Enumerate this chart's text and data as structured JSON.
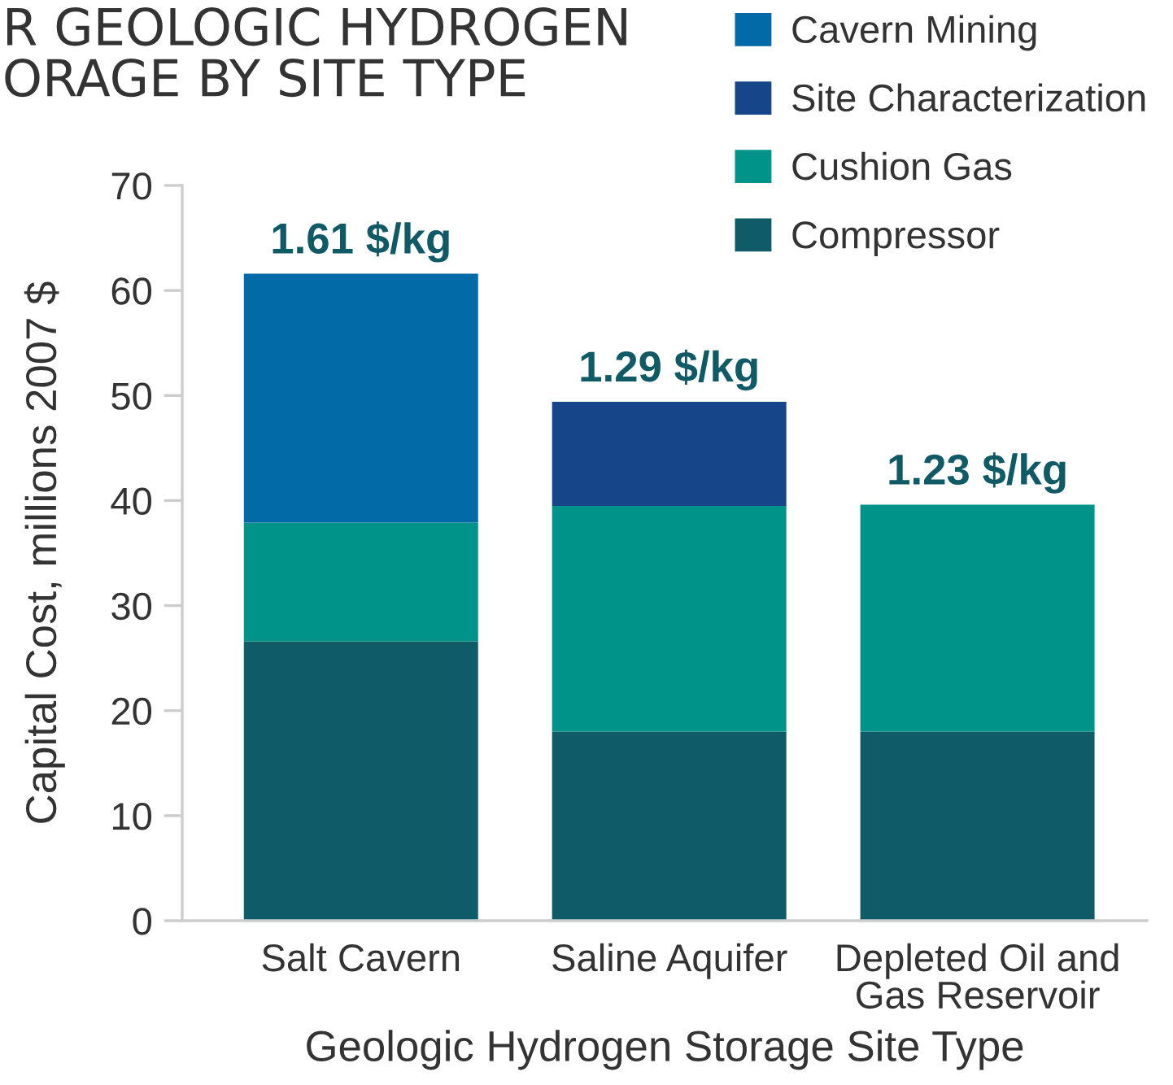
{
  "chart_data": {
    "type": "bar",
    "title": "R GEOLOGIC HYDROGEN\nORAGE BY SITE TYPE",
    "xlabel": "Geologic Hydrogen Storage Site Type",
    "ylabel": "Capital Cost, millions 2007 $",
    "categories": [
      "Salt Cavern",
      "Saline Aquifer",
      "Depleted Oil and\nGas Reservoir"
    ],
    "stacked": true,
    "series": [
      {
        "name": "Compressor",
        "color": "#105b68",
        "values": [
          26.6,
          18.0,
          18.0
        ]
      },
      {
        "name": "Cushion Gas",
        "color": "#009389",
        "values": [
          11.3,
          21.5,
          21.6
        ]
      },
      {
        "name": "Site Characterization",
        "color": "#17458a",
        "values": [
          null,
          9.9,
          null
        ]
      },
      {
        "name": "Cavern Mining",
        "color": "#036aa8",
        "values": [
          23.7,
          null,
          null
        ]
      }
    ],
    "annotations": [
      {
        "text": "1.61 $/kg",
        "x": "Salt Cavern",
        "y": 61.6
      },
      {
        "text": "1.29 $/kg",
        "x": "Saline Aquifer",
        "y": 49.4
      },
      {
        "text": "1.23 $/kg",
        "x": "Depleted Oil and\nGas Reservoir",
        "y": 39.6
      }
    ],
    "ylim": [
      0,
      70
    ],
    "yticks": [
      0,
      10,
      20,
      30,
      40,
      50,
      60,
      70
    ],
    "legend": "top right"
  }
}
